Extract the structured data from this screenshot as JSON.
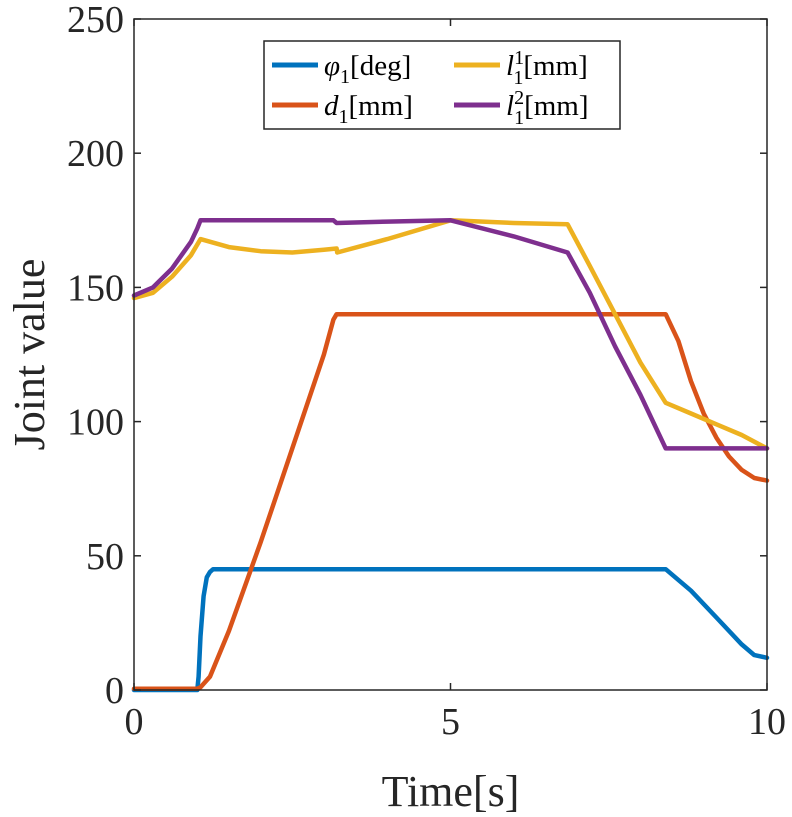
{
  "chart_data": {
    "type": "line",
    "title": "",
    "xlabel": "Time[s]",
    "ylabel": "Joint value",
    "xlim": [
      0,
      10
    ],
    "ylim": [
      0,
      250
    ],
    "xticks": [
      0,
      5,
      10
    ],
    "yticks": [
      0,
      50,
      100,
      150,
      200,
      250
    ],
    "xtick_labels": [
      "0",
      "5",
      "10"
    ],
    "ytick_labels": [
      "0",
      "50",
      "100",
      "150",
      "200",
      "250"
    ],
    "grid": false,
    "legend_position": "top-center",
    "series": [
      {
        "name": "φ1[deg]",
        "symbol": "φ",
        "sub": "1",
        "sup": "",
        "unit": "[deg]",
        "color": "#0072BD",
        "x": [
          0,
          1.0,
          1.02,
          1.05,
          1.1,
          1.15,
          1.2,
          1.25,
          1.3,
          3,
          5,
          8.0,
          8.4,
          8.8,
          9.2,
          9.6,
          9.8,
          10
        ],
        "y": [
          0,
          0,
          5,
          20,
          35,
          42,
          44,
          45,
          45,
          45,
          45,
          45,
          45,
          37,
          27,
          17,
          13,
          12
        ]
      },
      {
        "name": "d1[mm]",
        "symbol": "d",
        "sub": "1",
        "sup": "",
        "unit": "[mm]",
        "color": "#D95319",
        "x": [
          0,
          1.0,
          1.05,
          1.2,
          1.5,
          2.0,
          2.5,
          3.0,
          3.15,
          3.2,
          5,
          8.0,
          8.4,
          8.6,
          8.8,
          9.0,
          9.2,
          9.4,
          9.6,
          9.8,
          10
        ],
        "y": [
          0.5,
          0.5,
          1,
          5,
          22,
          55,
          90,
          125,
          138,
          140,
          140,
          140,
          140,
          130,
          115,
          103,
          94,
          87,
          82,
          79,
          78
        ]
      },
      {
        "name": "l11[mm]",
        "symbol": "l",
        "sub": "1",
        "sup": "1",
        "unit": "[mm]",
        "color": "#EDB120",
        "x": [
          0,
          0.3,
          0.6,
          0.9,
          1.05,
          1.5,
          2.0,
          2.5,
          3.0,
          3.2,
          3.21,
          4.0,
          5.0,
          6.0,
          6.85,
          7.2,
          7.6,
          8.0,
          8.4,
          8.8,
          9.2,
          9.6,
          10
        ],
        "y": [
          146,
          148,
          154,
          162,
          168,
          165,
          163.5,
          163,
          164,
          164.5,
          163,
          168,
          175,
          174,
          173.5,
          158,
          140,
          122,
          107,
          103,
          99,
          95,
          90
        ]
      },
      {
        "name": "l12[mm]",
        "symbol": "l",
        "sub": "1",
        "sup": "2",
        "unit": "[mm]",
        "color": "#7E2F8E",
        "x": [
          0,
          0.3,
          0.6,
          0.9,
          1.0,
          1.05,
          2.0,
          3.15,
          3.2,
          4.0,
          5.0,
          6.0,
          6.85,
          7.2,
          7.6,
          8.0,
          8.4,
          10
        ],
        "y": [
          147,
          150,
          157,
          167,
          172,
          175,
          175,
          175,
          174,
          174.5,
          175,
          169,
          163,
          148,
          128,
          110,
          90,
          90
        ]
      }
    ]
  }
}
